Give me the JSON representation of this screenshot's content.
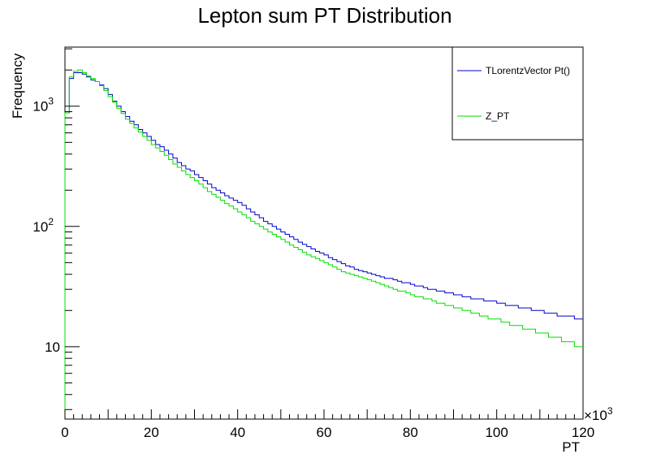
{
  "chart_data": {
    "type": "line",
    "style": "step-histogram",
    "title": "Lepton sum PT Distribution",
    "xlabel": "PT",
    "ylabel": "Frequency",
    "x_multiplier": "×10",
    "x_multiplier_exp": "3",
    "xlim": [
      0,
      120
    ],
    "ylim": [
      2.5,
      3100
    ],
    "yscale": "log",
    "grid": false,
    "legend_position": "top-right",
    "x_ticks": [
      0,
      20,
      40,
      60,
      80,
      100,
      120
    ],
    "x_tick_labels": [
      "0",
      "20",
      "40",
      "60",
      "80",
      "100",
      "120"
    ],
    "y_ticks": [
      10,
      100,
      1000
    ],
    "y_tick_labels": [
      {
        "base": "10",
        "exp": ""
      },
      {
        "base": "10",
        "exp": "2"
      },
      {
        "base": "10",
        "exp": "3"
      }
    ],
    "bin_width": 1,
    "series": [
      {
        "name": "TLorentzVector Pt()",
        "color": "#0000cc",
        "values": [
          880,
          1700,
          1900,
          1900,
          1850,
          1750,
          1650,
          1600,
          1500,
          1400,
          1250,
          1100,
          1000,
          900,
          820,
          750,
          700,
          640,
          600,
          560,
          520,
          480,
          460,
          430,
          400,
          370,
          340,
          320,
          300,
          290,
          270,
          255,
          240,
          225,
          210,
          200,
          190,
          180,
          172,
          165,
          158,
          150,
          140,
          132,
          125,
          118,
          110,
          105,
          100,
          95,
          90,
          86,
          82,
          78,
          74,
          71,
          68,
          65,
          62,
          60,
          58,
          55,
          53,
          51,
          49,
          47,
          46,
          44,
          43,
          42,
          41,
          40,
          39,
          38,
          37,
          37,
          36,
          35,
          34,
          34,
          33,
          32,
          32,
          31,
          30,
          30,
          29,
          29,
          28,
          28,
          27,
          27,
          26,
          26,
          25,
          25,
          25,
          24,
          24,
          24,
          23,
          23,
          22,
          22,
          22,
          21,
          21,
          21,
          20,
          20,
          20,
          19,
          19,
          19,
          18,
          18,
          18,
          18,
          17,
          17
        ]
      },
      {
        "name": "Z_PT",
        "color": "#00dd00",
        "values": [
          880,
          1750,
          1950,
          2000,
          1900,
          1780,
          1700,
          1600,
          1480,
          1350,
          1200,
          1080,
          960,
          870,
          780,
          720,
          660,
          610,
          560,
          520,
          480,
          450,
          420,
          390,
          360,
          330,
          310,
          290,
          270,
          255,
          240,
          225,
          210,
          195,
          185,
          175,
          165,
          155,
          148,
          140,
          132,
          125,
          118,
          110,
          105,
          100,
          95,
          90,
          86,
          82,
          78,
          74,
          70,
          67,
          64,
          61,
          58,
          56,
          54,
          52,
          50,
          48,
          46,
          44,
          42,
          41,
          40,
          39,
          38,
          37,
          36,
          35,
          34,
          33,
          32,
          31,
          30,
          29,
          29,
          28,
          27,
          26,
          26,
          25,
          25,
          24,
          23,
          23,
          22,
          22,
          21,
          21,
          20,
          20,
          19,
          19,
          18,
          18,
          17,
          17,
          17,
          16,
          16,
          15,
          15,
          15,
          14,
          14,
          14,
          13,
          13,
          13,
          12,
          12,
          12,
          11,
          11,
          11,
          10,
          10
        ]
      }
    ]
  }
}
